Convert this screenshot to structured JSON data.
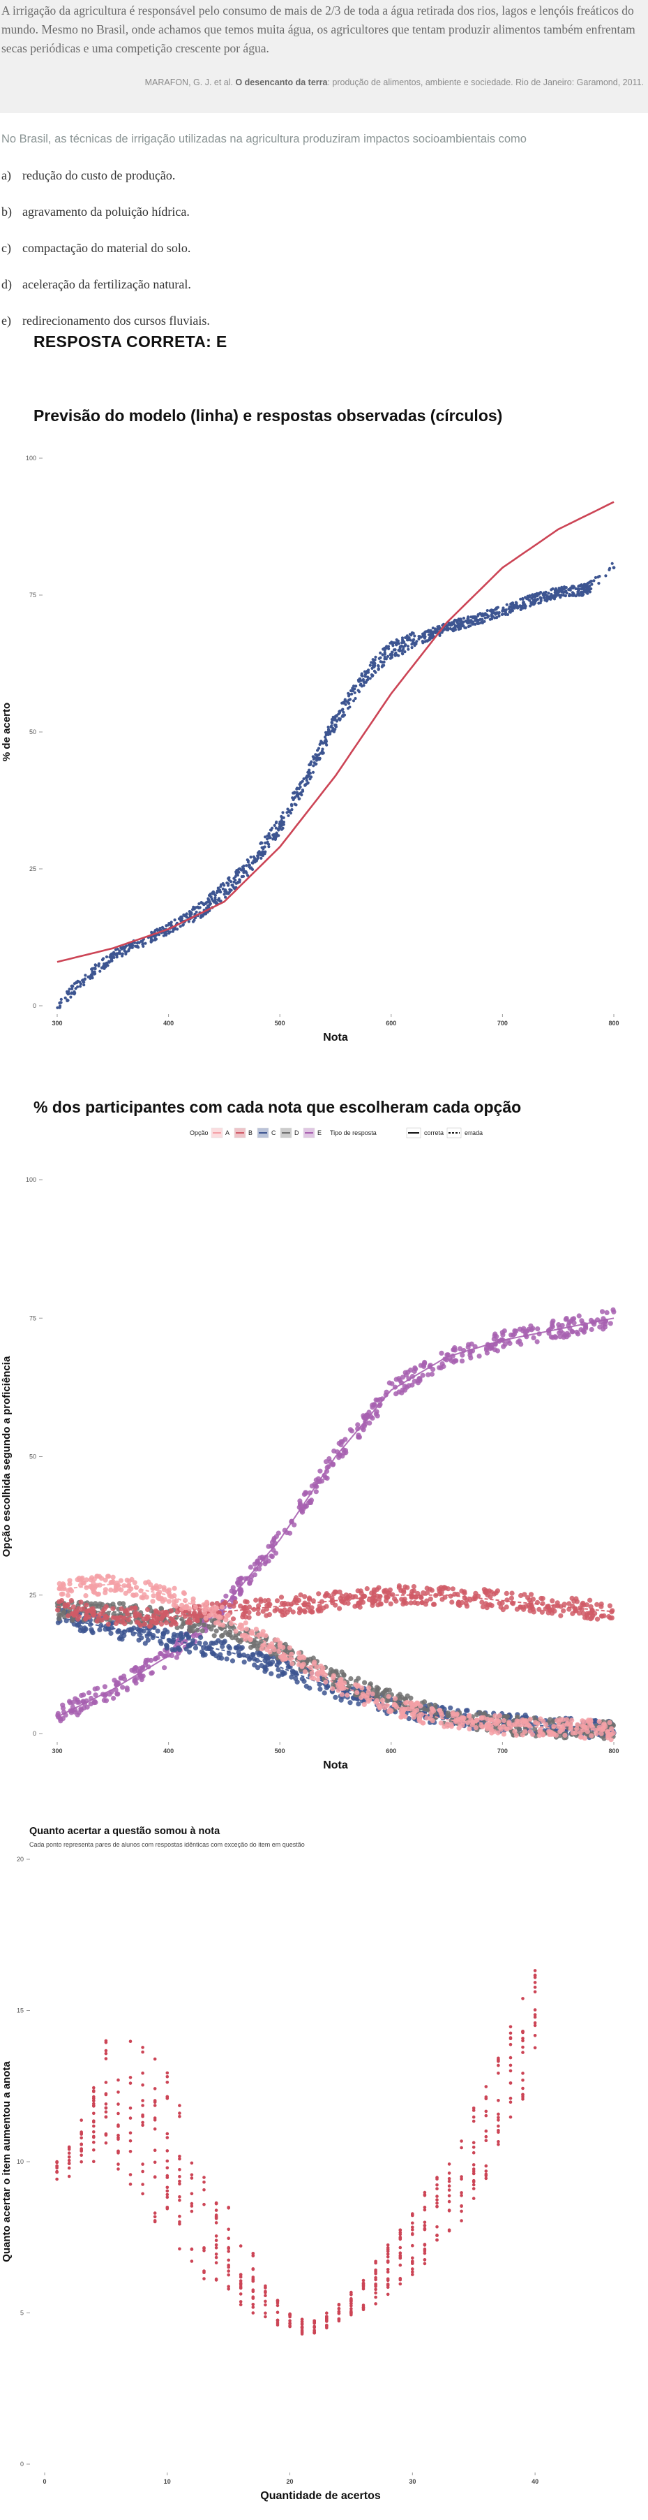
{
  "quote": {
    "text": "A irrigação da agricultura é responsável pelo consumo de mais de 2/3 de toda a água retirada dos rios, lagos e lençóis freáticos do mundo. Mesmo no Brasil, onde achamos que temos muita água, os agricultores que tentam produzir alimentos também enfrentam secas periódicas e uma competição crescente por água.",
    "citation_author": "MARAFON, G. J. et al. ",
    "citation_title": "O desencanto da terra",
    "citation_rest": ": produção de alimentos, ambiente e sociedade. Rio de Janeiro: Garamond, 2011."
  },
  "question": "No Brasil, as técnicas de irrigação utilizadas na agricultura produziram impactos socioambientais como",
  "options": [
    {
      "letter": "a)",
      "text": "redução do custo de produção."
    },
    {
      "letter": "b)",
      "text": "agravamento da poluição hídrica."
    },
    {
      "letter": "c)",
      "text": "compactação do material do solo."
    },
    {
      "letter": "d)",
      "text": "aceleração da fertilização natural."
    },
    {
      "letter": "e)",
      "text": "redirecionamento dos cursos fluviais."
    }
  ],
  "answer": "RESPOSTA CORRETA: E",
  "chart_data": [
    {
      "type": "scatter",
      "title": "Previsão do modelo (linha) e respostas observadas (círculos)",
      "xlabel": "Nota",
      "ylabel": "% de acerto",
      "xlim": [
        300,
        800
      ],
      "ylim": [
        0,
        100
      ],
      "xticks": [
        "300",
        "400",
        "500",
        "600",
        "700",
        "800"
      ],
      "yticks": [
        "0",
        "25",
        "50",
        "75",
        "100"
      ],
      "colors": {
        "points": "#3d5591",
        "curve": "#cc4455"
      },
      "model_curve": [
        [
          300,
          8
        ],
        [
          350,
          10.5
        ],
        [
          400,
          14
        ],
        [
          450,
          19
        ],
        [
          500,
          29
        ],
        [
          550,
          42
        ],
        [
          600,
          57
        ],
        [
          650,
          70
        ],
        [
          700,
          80
        ],
        [
          750,
          87
        ],
        [
          800,
          92
        ]
      ],
      "observed_points": [
        [
          300,
          0
        ],
        [
          310,
          2
        ],
        [
          325,
          5
        ],
        [
          350,
          9
        ],
        [
          375,
          11.5
        ],
        [
          400,
          14
        ],
        [
          425,
          17
        ],
        [
          450,
          21
        ],
        [
          475,
          26
        ],
        [
          500,
          33
        ],
        [
          525,
          42
        ],
        [
          550,
          52
        ],
        [
          575,
          60
        ],
        [
          600,
          65
        ],
        [
          625,
          67
        ],
        [
          650,
          69
        ],
        [
          675,
          70.5
        ],
        [
          700,
          72
        ],
        [
          725,
          74
        ],
        [
          750,
          75.5
        ],
        [
          775,
          76
        ],
        [
          800,
          80
        ]
      ]
    },
    {
      "type": "scatter",
      "title": "% dos participantes com cada nota que escolheram cada opção",
      "xlabel": "Nota",
      "ylabel": "Opção escolhida segundo a proficiência",
      "xlim": [
        300,
        800
      ],
      "ylim": [
        0,
        100
      ],
      "xticks": [
        "300",
        "400",
        "500",
        "600",
        "700",
        "800"
      ],
      "yticks": [
        "0",
        "25",
        "50",
        "75",
        "100"
      ],
      "legend": {
        "option_title": "Opção",
        "options": [
          "A",
          "B",
          "C",
          "D",
          "E"
        ],
        "type_title": "Tipo de resposta",
        "types": [
          "correta",
          "errada"
        ]
      },
      "series": [
        {
          "name": "A",
          "color": "#f4a0a6",
          "x": [
            300,
            350,
            400,
            450,
            500,
            550,
            600,
            650,
            700,
            750,
            800
          ],
          "values": [
            26,
            27,
            25,
            21,
            15,
            9,
            5,
            2.5,
            1.5,
            1,
            0.5
          ]
        },
        {
          "name": "B",
          "color": "#d05a66",
          "x": [
            300,
            350,
            400,
            450,
            500,
            550,
            600,
            650,
            700,
            750,
            800
          ],
          "values": [
            23,
            21,
            21,
            22,
            23,
            24,
            25,
            25,
            24,
            23,
            22
          ]
        },
        {
          "name": "C",
          "color": "#3d5591",
          "x": [
            300,
            350,
            400,
            450,
            500,
            550,
            600,
            650,
            700,
            750,
            800
          ],
          "values": [
            21,
            19,
            17,
            15,
            12,
            8,
            5,
            3,
            2,
            1.2,
            0.8
          ]
        },
        {
          "name": "D",
          "color": "#707070",
          "x": [
            300,
            350,
            400,
            450,
            500,
            550,
            600,
            650,
            700,
            750,
            800
          ],
          "values": [
            22,
            22,
            21,
            19,
            15,
            10,
            6,
            3,
            1.5,
            1,
            0.5
          ]
        },
        {
          "name": "E",
          "color": "#a760b0",
          "x": [
            300,
            350,
            400,
            450,
            500,
            550,
            600,
            650,
            700,
            750,
            800
          ],
          "values": [
            3,
            8,
            14,
            23,
            35,
            50,
            62,
            68,
            71,
            73,
            75
          ]
        }
      ]
    },
    {
      "type": "scatter",
      "title": "Quanto acertar a questão somou à nota",
      "subtitle": "Cada ponto representa pares de alunos com respostas idênticas com exceção do item em questão",
      "xlabel": "Quantidade de acertos",
      "ylabel": "Quanto acertar o item aumentou a anota",
      "xlim": [
        0,
        45
      ],
      "ylim": [
        0,
        20
      ],
      "xticks": [
        "0",
        "10",
        "20",
        "30",
        "40"
      ],
      "yticks": [
        "0",
        "5",
        "10",
        "15",
        "20"
      ],
      "color": "#cc4455",
      "columns": [
        [
          1,
          9.2,
          10.0
        ],
        [
          2,
          9.5,
          10.5
        ],
        [
          3,
          9.8,
          11.5
        ],
        [
          4,
          10.0,
          12.5
        ],
        [
          5,
          10.2,
          14.0
        ],
        [
          6,
          9.5,
          13.5
        ],
        [
          7,
          9.0,
          14.5
        ],
        [
          8,
          8.5,
          14.0
        ],
        [
          9,
          8.0,
          13.5
        ],
        [
          10,
          7.5,
          13.0
        ],
        [
          11,
          7.0,
          12.0
        ],
        [
          12,
          6.5,
          11.0
        ],
        [
          13,
          6.0,
          10.0
        ],
        [
          14,
          5.8,
          9.5
        ],
        [
          15,
          5.5,
          8.5
        ],
        [
          16,
          5.2,
          7.5
        ],
        [
          17,
          5.0,
          7.0
        ],
        [
          18,
          4.8,
          6.0
        ],
        [
          19,
          4.6,
          5.5
        ],
        [
          20,
          4.5,
          5.0
        ],
        [
          21,
          4.3,
          4.8
        ],
        [
          22,
          4.3,
          4.8
        ],
        [
          23,
          4.5,
          5.0
        ],
        [
          24,
          4.7,
          5.3
        ],
        [
          25,
          4.9,
          5.7
        ],
        [
          26,
          5.1,
          6.2
        ],
        [
          27,
          5.3,
          6.8
        ],
        [
          28,
          5.6,
          7.3
        ],
        [
          29,
          5.9,
          7.8
        ],
        [
          30,
          6.2,
          8.3
        ],
        [
          31,
          6.6,
          9.0
        ],
        [
          32,
          7.0,
          9.6
        ],
        [
          33,
          7.5,
          10.3
        ],
        [
          34,
          8.0,
          11.0
        ],
        [
          35,
          8.6,
          11.8
        ],
        [
          36,
          9.2,
          12.6
        ],
        [
          37,
          10.0,
          13.5
        ],
        [
          38,
          11.0,
          14.5
        ],
        [
          39,
          12.0,
          15.5
        ],
        [
          40,
          13.5,
          16.5
        ]
      ]
    }
  ]
}
